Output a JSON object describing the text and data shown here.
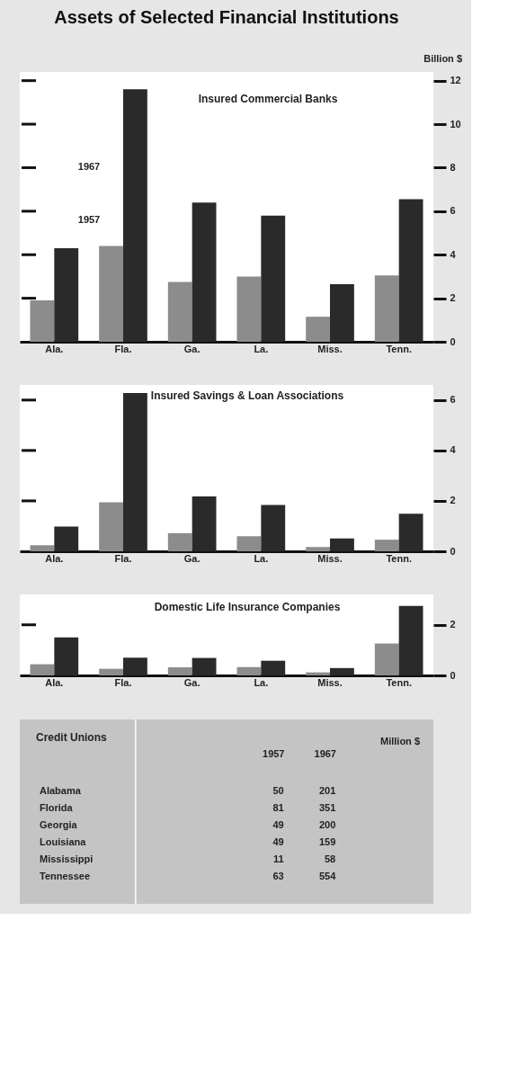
{
  "chart_data": [
    {
      "type": "bar",
      "title": "Assets of Selected Financial Institutions",
      "subtitle": "Insured Commercial Banks",
      "ylabel": "Billion $",
      "categories": [
        "Ala.",
        "Fla.",
        "Ga.",
        "La.",
        "Miss.",
        "Tenn."
      ],
      "series": [
        {
          "color": "#8c8c8c",
          "values": [
            1.9,
            4.4,
            2.75,
            3.0,
            1.15,
            3.05
          ]
        },
        {
          "color": "#2a2a2a",
          "values": [
            4.3,
            11.6,
            6.4,
            5.8,
            2.65,
            6.55
          ]
        }
      ],
      "ylim": [
        0,
        12.4
      ],
      "yticks": [
        0,
        2,
        4,
        6,
        8,
        10,
        12
      ],
      "annotations": [
        {
          "text": "1967",
          "x": "Fla.",
          "y": 8.0
        },
        {
          "text": "1957",
          "x": "Fla.",
          "y": 5.6
        }
      ]
    },
    {
      "type": "bar",
      "title": "Insured Savings & Loan Associations",
      "categories": [
        "Ala.",
        "Fla.",
        "Ga.",
        "La.",
        "Miss.",
        "Tenn."
      ],
      "series": [
        {
          "color": "#8c8c8c",
          "values": [
            0.24,
            1.94,
            0.72,
            0.6,
            0.17,
            0.46
          ]
        },
        {
          "color": "#2a2a2a",
          "values": [
            0.98,
            6.28,
            2.18,
            1.84,
            0.51,
            1.49
          ]
        }
      ],
      "ylim": [
        0,
        6.6
      ],
      "yticks": [
        0,
        2,
        4,
        6
      ]
    },
    {
      "type": "bar",
      "title": "Domestic Life Insurance Companies",
      "categories": [
        "Ala.",
        "Fla.",
        "Ga.",
        "La.",
        "Miss.",
        "Tenn."
      ],
      "series": [
        {
          "color": "#8c8c8c",
          "values": [
            0.44,
            0.26,
            0.32,
            0.33,
            0.12,
            1.26
          ]
        },
        {
          "color": "#2a2a2a",
          "values": [
            1.5,
            0.7,
            0.69,
            0.58,
            0.29,
            2.75
          ]
        }
      ],
      "ylim": [
        0,
        3.2
      ],
      "yticks": [
        0,
        2
      ]
    },
    {
      "type": "other",
      "title": "Credit Unions",
      "ylabel": "Million $",
      "categories": [
        "Alabama",
        "Florida",
        "Georgia",
        "Louisiana",
        "Mississippi",
        "Tennessee"
      ],
      "series": [
        {
          "name": "1957",
          "values": [
            50,
            81,
            49,
            49,
            11,
            63
          ]
        },
        {
          "name": "1967",
          "values": [
            201,
            351,
            200,
            159,
            58,
            554
          ]
        }
      ],
      "data_labels": true
    }
  ]
}
